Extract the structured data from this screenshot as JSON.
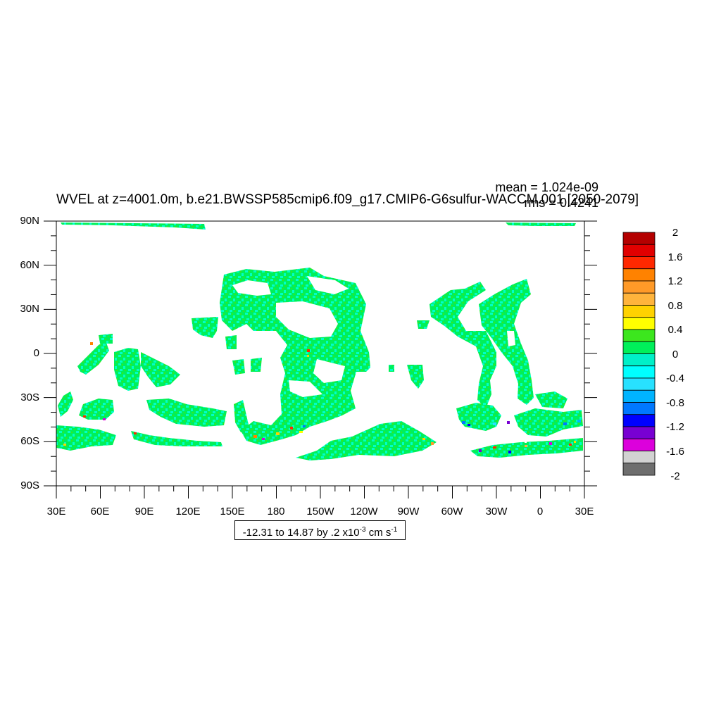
{
  "title": "WVEL at z=4001.0m, b.e21.BWSSP585cmip6.f09_g17.CMIP6-G6sulfur-WACCM.001 [2050-2079]",
  "stats": {
    "mean": "mean = 1.024e-09",
    "rms": "rms = 0.4241"
  },
  "axes": {
    "y_labels": [
      "90N",
      "60N",
      "30N",
      "0",
      "30S",
      "60S",
      "90S"
    ],
    "x_labels": [
      "30E",
      "60E",
      "90E",
      "120E",
      "150E",
      "180",
      "150W",
      "120W",
      "90W",
      "60W",
      "30W",
      "0",
      "30E"
    ]
  },
  "colorbar": {
    "labels": [
      "2",
      "1.6",
      "1.2",
      "0.8",
      "0.4",
      "0",
      "-0.4",
      "-0.8",
      "-1.2",
      "-1.6",
      "-2"
    ],
    "colors": [
      "#b40000",
      "#e10000",
      "#ff2800",
      "#ff8200",
      "#ff9a28",
      "#ffb43c",
      "#ffd200",
      "#ffff00",
      "#3ce61e",
      "#00f05a",
      "#00f0c8",
      "#00ffff",
      "#28e1ff",
      "#00b4ff",
      "#0078ff",
      "#0000ff",
      "#7800d2",
      "#dc00dc",
      "#d2d2d2",
      "#6e6e6e"
    ]
  },
  "info": {
    "text": "-12.31 to 14.87 by .2 x10",
    "exp1": "-3",
    "unit": " cm s",
    "exp2": "-1"
  },
  "map": {
    "type": "filled contour map",
    "variable": "WVEL",
    "lon_range": [
      30,
      390
    ],
    "lat_range": [
      -90,
      90
    ],
    "palette": {
      "land": "#ffffff",
      "dominant": "#00f05a",
      "secondary": "#00ffc8"
    }
  }
}
